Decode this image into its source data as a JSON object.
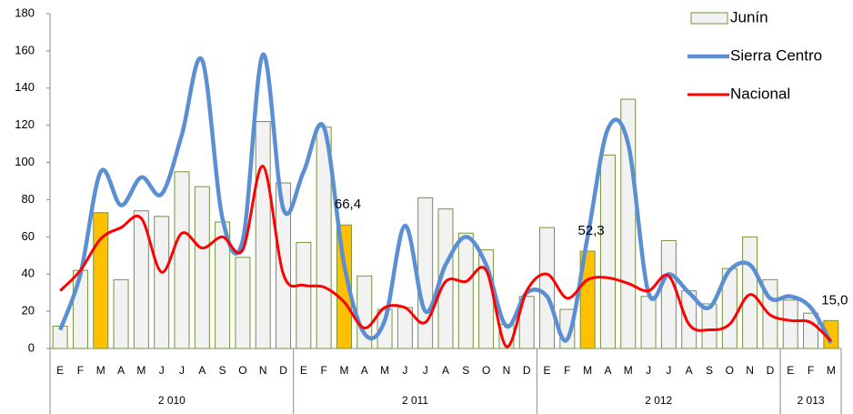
{
  "chart_data": {
    "type": "bar-line",
    "categories": [
      "E",
      "F",
      "M",
      "A",
      "M",
      "J",
      "J",
      "A",
      "S",
      "O",
      "N",
      "D",
      "E",
      "F",
      "M",
      "A",
      "M",
      "J",
      "J",
      "A",
      "S",
      "O",
      "N",
      "D",
      "E",
      "F",
      "M",
      "A",
      "M",
      "J",
      "J",
      "A",
      "S",
      "O",
      "N",
      "D",
      "E",
      "F",
      "M"
    ],
    "groups": [
      {
        "label": "2 010",
        "span": 12
      },
      {
        "label": "2 011",
        "span": 12
      },
      {
        "label": "2 012",
        "span": 12
      },
      {
        "label": "2 013",
        "span": 3
      }
    ],
    "series": [
      {
        "name": "Junín",
        "kind": "bar",
        "color": "#f2f2f2",
        "edge_color": "#77933c",
        "values": [
          12,
          42,
          73,
          37,
          74,
          71,
          95,
          87,
          68,
          49,
          122,
          89,
          57,
          119,
          66.4,
          39,
          21,
          22,
          81,
          75,
          62,
          53,
          13,
          28,
          65,
          21,
          52.3,
          104,
          134,
          28,
          58,
          31,
          24,
          43,
          60,
          37,
          26,
          19,
          15.0
        ],
        "bar_colors": [
          "#f2f2f2",
          "#f2f2f2",
          "#ffc000",
          "#f2f2f2",
          "#f2f2f2",
          "#f2f2f2",
          "#f2f2f2",
          "#f2f2f2",
          "#f2f2f2",
          "#f2f2f2",
          "#f2f2f2",
          "#f2f2f2",
          "#f2f2f2",
          "#f2f2f2",
          "#ffc000",
          "#f2f2f2",
          "#f2f2f2",
          "#f2f2f2",
          "#f2f2f2",
          "#f2f2f2",
          "#f2f2f2",
          "#f2f2f2",
          "#f2f2f2",
          "#f2f2f2",
          "#f2f2f2",
          "#f2f2f2",
          "#ffc000",
          "#f2f2f2",
          "#f2f2f2",
          "#f2f2f2",
          "#f2f2f2",
          "#f2f2f2",
          "#f2f2f2",
          "#f2f2f2",
          "#f2f2f2",
          "#f2f2f2",
          "#f2f2f2",
          "#f2f2f2",
          "#ffc000"
        ],
        "value_labels": [
          null,
          null,
          null,
          null,
          null,
          null,
          null,
          null,
          null,
          null,
          null,
          null,
          null,
          null,
          "66,4",
          null,
          null,
          null,
          null,
          null,
          null,
          null,
          null,
          null,
          null,
          null,
          "52,3",
          null,
          null,
          null,
          null,
          null,
          null,
          null,
          null,
          null,
          null,
          null,
          "15,0"
        ]
      },
      {
        "name": "Sierra Centro",
        "kind": "line",
        "color": "#5b8fd4",
        "values": [
          10,
          40,
          95,
          77,
          92,
          83,
          115,
          155,
          70,
          58,
          158,
          75,
          95,
          119,
          45,
          8,
          15,
          66,
          20,
          45,
          60,
          45,
          12,
          30,
          28,
          5,
          60,
          118,
          110,
          30,
          40,
          30,
          22,
          42,
          45,
          27,
          28,
          22,
          3
        ]
      },
      {
        "name": "Nacional",
        "kind": "line",
        "color": "#ff0000",
        "values": [
          31,
          42,
          59,
          65,
          70,
          41,
          62,
          54,
          60,
          53,
          98,
          40,
          34,
          33,
          25,
          11,
          22,
          22,
          14,
          36,
          36,
          42,
          1,
          31,
          40,
          27,
          37,
          38,
          35,
          31,
          39,
          13,
          10,
          13,
          29,
          18,
          15,
          14,
          4
        ]
      }
    ],
    "ylim": [
      0,
      180
    ],
    "yticks": [
      0,
      20,
      40,
      60,
      80,
      100,
      120,
      140,
      160,
      180
    ]
  }
}
